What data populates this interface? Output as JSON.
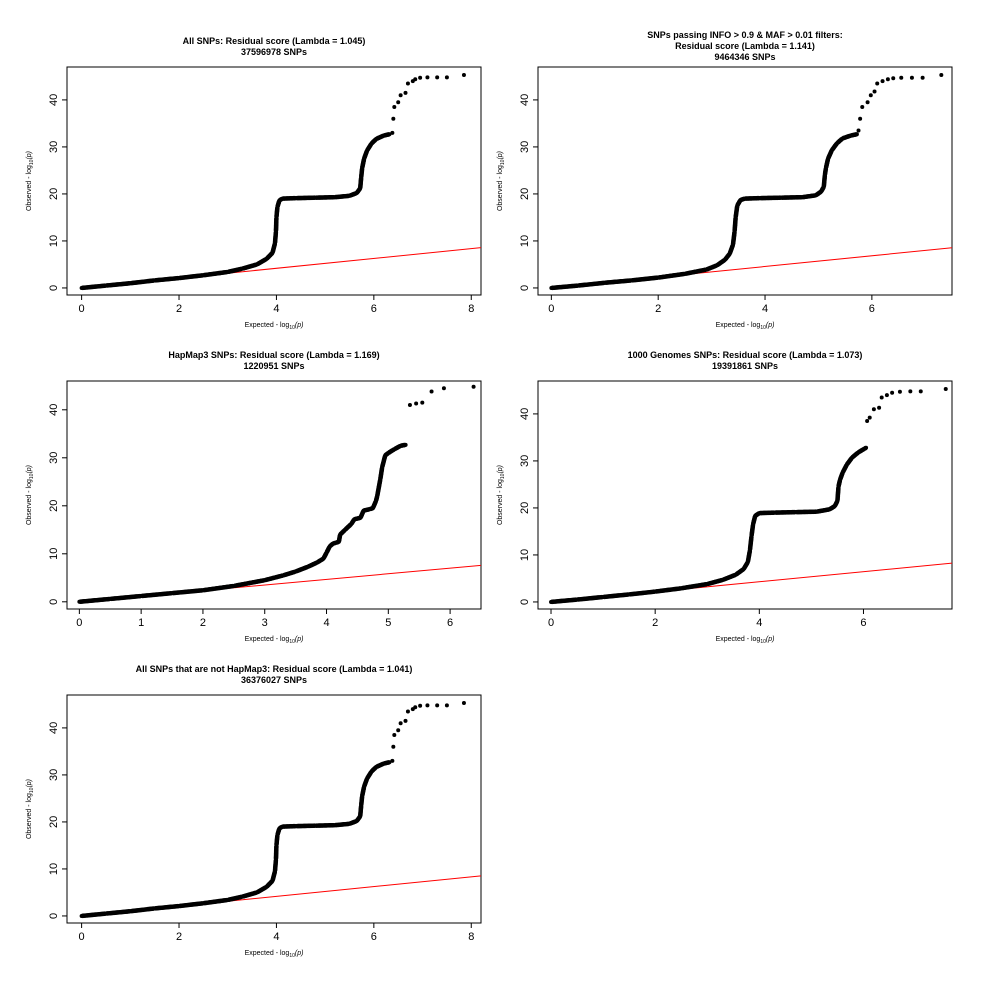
{
  "chart_data": [
    {
      "type": "scatter",
      "title": "All SNPs: Residual score (Lambda = 1.045)",
      "subtitle": "37596978 SNPs",
      "xlabel": "Expected  - log10(p)",
      "ylabel": "Observed  - log10(p)",
      "xlim": [
        -0.3,
        8.2
      ],
      "ylim": [
        -1.5,
        47
      ],
      "xticks": [
        0,
        2,
        4,
        6,
        8
      ],
      "yticks": [
        0,
        10,
        20,
        30,
        40
      ],
      "expected_line_slope": 1.045,
      "series": [
        {
          "values": [
            [
              0,
              0
            ],
            [
              0.5,
              0.5
            ],
            [
              1,
              1
            ],
            [
              1.5,
              1.6
            ],
            [
              2,
              2.1
            ],
            [
              2.5,
              2.7
            ],
            [
              3,
              3.4
            ],
            [
              3.3,
              4.1
            ],
            [
              3.6,
              5.0
            ],
            [
              3.8,
              6.2
            ],
            [
              3.92,
              7.5
            ],
            [
              3.97,
              9.5
            ],
            [
              3.99,
              12
            ],
            [
              4.0,
              15
            ],
            [
              4.02,
              17.2
            ],
            [
              4.06,
              18.6
            ],
            [
              4.12,
              19.0
            ],
            [
              4.4,
              19.1
            ],
            [
              4.8,
              19.2
            ],
            [
              5.2,
              19.3
            ],
            [
              5.5,
              19.6
            ],
            [
              5.65,
              20.2
            ],
            [
              5.72,
              21.2
            ],
            [
              5.74,
              23.5
            ],
            [
              5.76,
              25.5
            ],
            [
              5.8,
              27.5
            ],
            [
              5.86,
              29.2
            ],
            [
              5.95,
              30.7
            ],
            [
              6.05,
              31.7
            ],
            [
              6.2,
              32.4
            ],
            [
              6.32,
              32.7
            ],
            [
              6.38,
              33
            ],
            [
              6.4,
              36
            ],
            [
              6.42,
              38.5
            ],
            [
              6.5,
              39.5
            ],
            [
              6.55,
              41
            ],
            [
              6.65,
              41.5
            ],
            [
              6.7,
              43.5
            ],
            [
              6.8,
              44
            ],
            [
              6.85,
              44.4
            ],
            [
              6.95,
              44.7
            ],
            [
              7.1,
              44.8
            ],
            [
              7.3,
              44.8
            ],
            [
              7.5,
              44.8
            ],
            [
              7.85,
              45.3
            ]
          ]
        }
      ]
    },
    {
      "type": "scatter",
      "title": "SNPs passing INFO > 0.9 & MAF > 0.01 filters:",
      "subtitle": "Residual score (Lambda = 1.141)",
      "subtitle2": "9464346 SNPs",
      "xlabel": "Expected  - log10(p)",
      "ylabel": "Observed  - log10(p)",
      "xlim": [
        -0.25,
        7.5
      ],
      "ylim": [
        -1.5,
        47
      ],
      "xticks": [
        0,
        2,
        4,
        6
      ],
      "yticks": [
        0,
        10,
        20,
        30,
        40
      ],
      "expected_line_slope": 1.141,
      "series": [
        {
          "values": [
            [
              0,
              0
            ],
            [
              0.5,
              0.5
            ],
            [
              1,
              1.1
            ],
            [
              1.5,
              1.6
            ],
            [
              2,
              2.2
            ],
            [
              2.5,
              3.0
            ],
            [
              2.9,
              3.9
            ],
            [
              3.1,
              4.8
            ],
            [
              3.25,
              6.0
            ],
            [
              3.34,
              7.3
            ],
            [
              3.4,
              9.2
            ],
            [
              3.43,
              12
            ],
            [
              3.45,
              15
            ],
            [
              3.48,
              17.5
            ],
            [
              3.54,
              18.7
            ],
            [
              3.62,
              19.0
            ],
            [
              3.9,
              19.1
            ],
            [
              4.3,
              19.2
            ],
            [
              4.7,
              19.3
            ],
            [
              4.95,
              19.7
            ],
            [
              5.05,
              20.5
            ],
            [
              5.1,
              21.5
            ],
            [
              5.12,
              24
            ],
            [
              5.14,
              25.5
            ],
            [
              5.18,
              27.5
            ],
            [
              5.25,
              29.3
            ],
            [
              5.35,
              30.8
            ],
            [
              5.45,
              31.8
            ],
            [
              5.6,
              32.4
            ],
            [
              5.72,
              32.7
            ],
            [
              5.75,
              33.5
            ],
            [
              5.78,
              36
            ],
            [
              5.82,
              38.5
            ],
            [
              5.92,
              39.5
            ],
            [
              5.98,
              41
            ],
            [
              6.05,
              41.8
            ],
            [
              6.1,
              43.5
            ],
            [
              6.2,
              44
            ],
            [
              6.3,
              44.4
            ],
            [
              6.4,
              44.6
            ],
            [
              6.55,
              44.7
            ],
            [
              6.75,
              44.7
            ],
            [
              6.95,
              44.7
            ],
            [
              7.3,
              45.3
            ]
          ]
        }
      ]
    },
    {
      "type": "scatter",
      "title": "HapMap3 SNPs: Residual score (Lambda = 1.169)",
      "subtitle": "1220951 SNPs",
      "xlabel": "Expected  - log10(p)",
      "ylabel": "Observed  - log10(p)",
      "xlim": [
        -0.2,
        6.5
      ],
      "ylim": [
        -1.5,
        46
      ],
      "xticks": [
        0,
        1,
        2,
        3,
        4,
        5,
        6
      ],
      "yticks": [
        0,
        10,
        20,
        30,
        40
      ],
      "expected_line_slope": 1.169,
      "series": [
        {
          "values": [
            [
              0,
              0
            ],
            [
              0.5,
              0.6
            ],
            [
              1,
              1.2
            ],
            [
              1.5,
              1.8
            ],
            [
              2,
              2.4
            ],
            [
              2.5,
              3.3
            ],
            [
              3,
              4.5
            ],
            [
              3.3,
              5.5
            ],
            [
              3.5,
              6.3
            ],
            [
              3.7,
              7.3
            ],
            [
              3.85,
              8.2
            ],
            [
              3.95,
              9.0
            ],
            [
              4.0,
              10.2
            ],
            [
              4.05,
              11.5
            ],
            [
              4.1,
              12.1
            ],
            [
              4.15,
              12.3
            ],
            [
              4.2,
              12.5
            ],
            [
              4.22,
              14
            ],
            [
              4.3,
              15
            ],
            [
              4.4,
              16.2
            ],
            [
              4.45,
              17.2
            ],
            [
              4.55,
              17.5
            ],
            [
              4.6,
              19.0
            ],
            [
              4.7,
              19.3
            ],
            [
              4.75,
              19.5
            ],
            [
              4.8,
              21
            ],
            [
              4.82,
              22
            ],
            [
              4.87,
              25.5
            ],
            [
              4.9,
              28
            ],
            [
              4.95,
              30.5
            ],
            [
              5.0,
              31
            ],
            [
              5.1,
              31.8
            ],
            [
              5.2,
              32.5
            ],
            [
              5.28,
              32.7
            ],
            [
              5.35,
              41
            ],
            [
              5.45,
              41.3
            ],
            [
              5.55,
              41.5
            ],
            [
              5.7,
              43.8
            ],
            [
              5.9,
              44.5
            ],
            [
              6.38,
              44.8
            ]
          ]
        }
      ]
    },
    {
      "type": "scatter",
      "title": "1000 Genomes SNPs: Residual score (Lambda = 1.073)",
      "subtitle": "19391861 SNPs",
      "xlabel": "Expected  - log10(p)",
      "ylabel": "Observed  - log10(p)",
      "xlim": [
        -0.25,
        7.7
      ],
      "ylim": [
        -1.5,
        47
      ],
      "xticks": [
        0,
        2,
        4,
        6
      ],
      "yticks": [
        0,
        10,
        20,
        30,
        40
      ],
      "expected_line_slope": 1.073,
      "series": [
        {
          "values": [
            [
              0,
              0
            ],
            [
              0.5,
              0.5
            ],
            [
              1,
              1.05
            ],
            [
              1.5,
              1.6
            ],
            [
              2,
              2.2
            ],
            [
              2.5,
              2.9
            ],
            [
              3,
              3.8
            ],
            [
              3.3,
              4.7
            ],
            [
              3.55,
              5.8
            ],
            [
              3.7,
              7.0
            ],
            [
              3.78,
              8.5
            ],
            [
              3.82,
              11
            ],
            [
              3.85,
              14
            ],
            [
              3.88,
              16.5
            ],
            [
              3.92,
              18.3
            ],
            [
              4.0,
              18.9
            ],
            [
              4.3,
              19.0
            ],
            [
              4.7,
              19.1
            ],
            [
              5.1,
              19.2
            ],
            [
              5.35,
              19.7
            ],
            [
              5.45,
              20.4
            ],
            [
              5.5,
              21.5
            ],
            [
              5.52,
              24.5
            ],
            [
              5.55,
              26
            ],
            [
              5.6,
              27.5
            ],
            [
              5.68,
              29.2
            ],
            [
              5.78,
              30.7
            ],
            [
              5.9,
              31.8
            ],
            [
              6.02,
              32.6
            ],
            [
              6.05,
              32.8
            ],
            [
              6.07,
              38.5
            ],
            [
              6.12,
              39.2
            ],
            [
              6.2,
              41
            ],
            [
              6.3,
              41.3
            ],
            [
              6.35,
              43.5
            ],
            [
              6.45,
              44.0
            ],
            [
              6.55,
              44.5
            ],
            [
              6.7,
              44.7
            ],
            [
              6.9,
              44.8
            ],
            [
              7.1,
              44.8
            ],
            [
              7.58,
              45.3
            ]
          ]
        }
      ]
    },
    {
      "type": "scatter",
      "title": "All SNPs that are not HapMap3: Residual score (Lambda = 1.041)",
      "subtitle": "36376027 SNPs",
      "xlabel": "Expected  - log10(p)",
      "ylabel": "Observed  - log10(p)",
      "xlim": [
        -0.3,
        8.2
      ],
      "ylim": [
        -1.5,
        47
      ],
      "xticks": [
        0,
        2,
        4,
        6,
        8
      ],
      "yticks": [
        0,
        10,
        20,
        30,
        40
      ],
      "expected_line_slope": 1.041,
      "series": [
        {
          "values": [
            [
              0,
              0
            ],
            [
              0.5,
              0.5
            ],
            [
              1,
              1
            ],
            [
              1.5,
              1.6
            ],
            [
              2,
              2.1
            ],
            [
              2.5,
              2.7
            ],
            [
              3,
              3.4
            ],
            [
              3.3,
              4.1
            ],
            [
              3.6,
              5.0
            ],
            [
              3.8,
              6.2
            ],
            [
              3.92,
              7.5
            ],
            [
              3.97,
              9.5
            ],
            [
              3.99,
              12
            ],
            [
              4.0,
              15
            ],
            [
              4.02,
              17.2
            ],
            [
              4.06,
              18.6
            ],
            [
              4.12,
              19.0
            ],
            [
              4.4,
              19.1
            ],
            [
              4.8,
              19.2
            ],
            [
              5.2,
              19.3
            ],
            [
              5.5,
              19.6
            ],
            [
              5.65,
              20.2
            ],
            [
              5.72,
              21.2
            ],
            [
              5.74,
              23.5
            ],
            [
              5.76,
              25.5
            ],
            [
              5.8,
              27.5
            ],
            [
              5.86,
              29.2
            ],
            [
              5.95,
              30.7
            ],
            [
              6.05,
              31.7
            ],
            [
              6.2,
              32.4
            ],
            [
              6.32,
              32.7
            ],
            [
              6.38,
              33
            ],
            [
              6.4,
              36
            ],
            [
              6.42,
              38.5
            ],
            [
              6.5,
              39.5
            ],
            [
              6.55,
              41
            ],
            [
              6.65,
              41.5
            ],
            [
              6.7,
              43.5
            ],
            [
              6.8,
              44
            ],
            [
              6.85,
              44.4
            ],
            [
              6.95,
              44.7
            ],
            [
              7.1,
              44.8
            ],
            [
              7.3,
              44.8
            ],
            [
              7.5,
              44.8
            ],
            [
              7.85,
              45.3
            ]
          ]
        }
      ]
    }
  ]
}
